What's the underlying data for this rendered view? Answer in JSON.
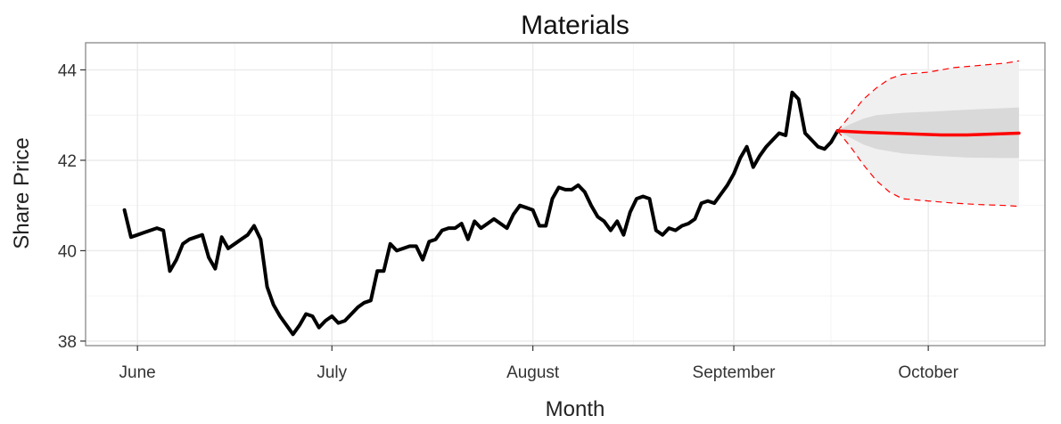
{
  "chart_data": {
    "type": "line",
    "title": "Materials",
    "xlabel": "Month",
    "ylabel": "Share Price",
    "x_ticks": [
      {
        "label": "June",
        "day": 2
      },
      {
        "label": "July",
        "day": 32
      },
      {
        "label": "August",
        "day": 63
      },
      {
        "label": "September",
        "day": 94
      },
      {
        "label": "October",
        "day": 124
      }
    ],
    "y_ticks": [
      38,
      40,
      42,
      44
    ],
    "xlim": [
      -6,
      142
    ],
    "ylim": [
      37.9,
      44.6
    ],
    "grid": true,
    "colors": {
      "history": "#000000",
      "forecast": "#ff0000",
      "band80": "#d9d9d9",
      "band95": "#f0f0f0",
      "grid": "#ebebeb",
      "panel_border": "#7f7f7f"
    },
    "series": [
      {
        "role": "history",
        "points": [
          [
            0,
            40.9
          ],
          [
            1,
            40.3
          ],
          [
            2,
            40.35
          ],
          [
            3,
            40.4
          ],
          [
            4,
            40.45
          ],
          [
            5,
            40.5
          ],
          [
            6,
            40.45
          ],
          [
            7,
            39.55
          ],
          [
            8,
            39.8
          ],
          [
            9,
            40.15
          ],
          [
            10,
            40.25
          ],
          [
            11,
            40.3
          ],
          [
            12,
            40.35
          ],
          [
            13,
            39.85
          ],
          [
            14,
            39.6
          ],
          [
            15,
            40.3
          ],
          [
            16,
            40.05
          ],
          [
            17,
            40.15
          ],
          [
            18,
            40.25
          ],
          [
            19,
            40.35
          ],
          [
            20,
            40.55
          ],
          [
            21,
            40.25
          ],
          [
            22,
            39.2
          ],
          [
            23,
            38.8
          ],
          [
            24,
            38.55
          ],
          [
            25,
            38.35
          ],
          [
            26,
            38.15
          ],
          [
            27,
            38.35
          ],
          [
            28,
            38.6
          ],
          [
            29,
            38.55
          ],
          [
            30,
            38.3
          ],
          [
            31,
            38.45
          ],
          [
            32,
            38.55
          ],
          [
            33,
            38.4
          ],
          [
            34,
            38.45
          ],
          [
            35,
            38.6
          ],
          [
            36,
            38.75
          ],
          [
            37,
            38.85
          ],
          [
            38,
            38.9
          ],
          [
            39,
            39.55
          ],
          [
            40,
            39.55
          ],
          [
            41,
            40.15
          ],
          [
            42,
            40.0
          ],
          [
            43,
            40.05
          ],
          [
            44,
            40.1
          ],
          [
            45,
            40.1
          ],
          [
            46,
            39.8
          ],
          [
            47,
            40.2
          ],
          [
            48,
            40.25
          ],
          [
            49,
            40.45
          ],
          [
            50,
            40.5
          ],
          [
            51,
            40.5
          ],
          [
            52,
            40.6
          ],
          [
            53,
            40.25
          ],
          [
            54,
            40.65
          ],
          [
            55,
            40.5
          ],
          [
            56,
            40.6
          ],
          [
            57,
            40.7
          ],
          [
            58,
            40.6
          ],
          [
            59,
            40.5
          ],
          [
            60,
            40.8
          ],
          [
            61,
            41.0
          ],
          [
            62,
            40.95
          ],
          [
            63,
            40.9
          ],
          [
            64,
            40.55
          ],
          [
            65,
            40.55
          ],
          [
            66,
            41.15
          ],
          [
            67,
            41.4
          ],
          [
            68,
            41.35
          ],
          [
            69,
            41.35
          ],
          [
            70,
            41.45
          ],
          [
            71,
            41.3
          ],
          [
            72,
            41.0
          ],
          [
            73,
            40.75
          ],
          [
            74,
            40.65
          ],
          [
            75,
            40.45
          ],
          [
            76,
            40.65
          ],
          [
            77,
            40.35
          ],
          [
            78,
            40.85
          ],
          [
            79,
            41.15
          ],
          [
            80,
            41.2
          ],
          [
            81,
            41.15
          ],
          [
            82,
            40.45
          ],
          [
            83,
            40.35
          ],
          [
            84,
            40.5
          ],
          [
            85,
            40.45
          ],
          [
            86,
            40.55
          ],
          [
            87,
            40.6
          ],
          [
            88,
            40.7
          ],
          [
            89,
            41.05
          ],
          [
            90,
            41.1
          ],
          [
            91,
            41.05
          ],
          [
            92,
            41.25
          ],
          [
            93,
            41.45
          ],
          [
            94,
            41.7
          ],
          [
            95,
            42.05
          ],
          [
            96,
            42.3
          ],
          [
            97,
            41.85
          ],
          [
            98,
            42.1
          ],
          [
            99,
            42.3
          ],
          [
            100,
            42.45
          ],
          [
            101,
            42.6
          ],
          [
            102,
            42.55
          ],
          [
            103,
            43.5
          ],
          [
            104,
            43.35
          ],
          [
            105,
            42.6
          ],
          [
            106,
            42.45
          ],
          [
            107,
            42.3
          ],
          [
            108,
            42.25
          ],
          [
            109,
            42.4
          ],
          [
            110,
            42.65
          ]
        ]
      },
      {
        "role": "forecast",
        "points": [
          [
            110,
            42.65
          ],
          [
            114,
            42.62
          ],
          [
            118,
            42.6
          ],
          [
            122,
            42.58
          ],
          [
            126,
            42.56
          ],
          [
            130,
            42.56
          ],
          [
            134,
            42.58
          ],
          [
            138,
            42.6
          ]
        ]
      },
      {
        "role": "upper95",
        "points": [
          [
            110,
            42.65
          ],
          [
            112,
            43.0
          ],
          [
            114,
            43.35
          ],
          [
            116,
            43.6
          ],
          [
            118,
            43.8
          ],
          [
            120,
            43.9
          ],
          [
            124,
            43.95
          ],
          [
            128,
            44.05
          ],
          [
            132,
            44.1
          ],
          [
            136,
            44.15
          ],
          [
            138,
            44.2
          ]
        ]
      },
      {
        "role": "lower95",
        "points": [
          [
            110,
            42.65
          ],
          [
            112,
            42.3
          ],
          [
            114,
            41.9
          ],
          [
            116,
            41.55
          ],
          [
            118,
            41.3
          ],
          [
            120,
            41.15
          ],
          [
            124,
            41.1
          ],
          [
            128,
            41.05
          ],
          [
            132,
            41.02
          ],
          [
            136,
            41.0
          ],
          [
            138,
            40.98
          ]
        ]
      },
      {
        "role": "upper80",
        "points": [
          [
            110,
            42.65
          ],
          [
            112,
            42.8
          ],
          [
            114,
            42.92
          ],
          [
            116,
            43.0
          ],
          [
            120,
            43.05
          ],
          [
            125,
            43.08
          ],
          [
            130,
            43.12
          ],
          [
            135,
            43.15
          ],
          [
            138,
            43.17
          ]
        ]
      },
      {
        "role": "lower80",
        "points": [
          [
            110,
            42.65
          ],
          [
            112,
            42.5
          ],
          [
            114,
            42.35
          ],
          [
            116,
            42.25
          ],
          [
            120,
            42.15
          ],
          [
            125,
            42.1
          ],
          [
            130,
            42.06
          ],
          [
            135,
            42.05
          ],
          [
            138,
            42.05
          ]
        ]
      }
    ]
  }
}
